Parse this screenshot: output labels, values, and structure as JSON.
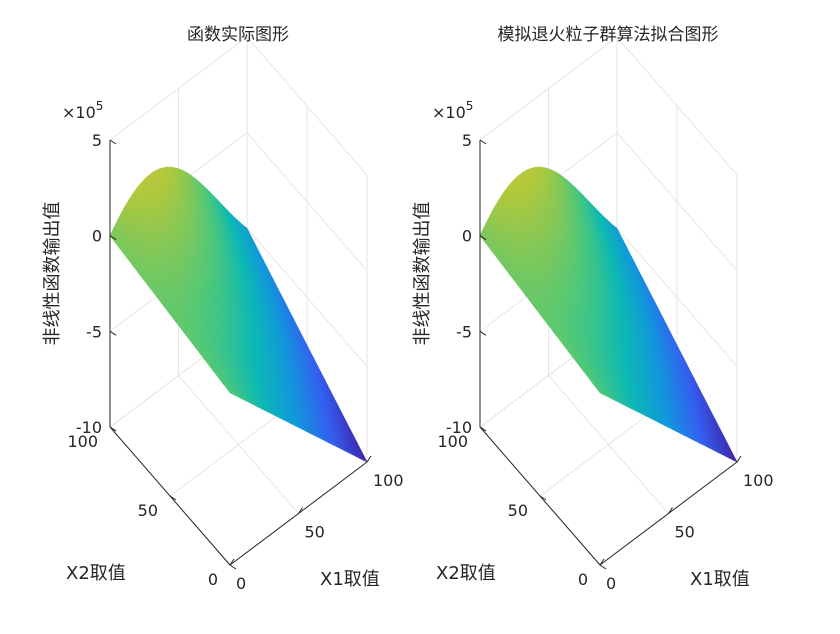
{
  "chart_data": [
    {
      "type": "surface",
      "title": "函数实际图形",
      "xlabel": "X1取值",
      "ylabel": "X2取值",
      "zlabel": "非线性函数输出值",
      "z_multiplier": "×10",
      "z_exponent": "5",
      "xlim": [
        0,
        100
      ],
      "ylim": [
        0,
        100
      ],
      "zlim": [
        -10,
        5
      ],
      "xticks": [
        "0",
        "50",
        "100"
      ],
      "yticks": [
        "0",
        "50",
        "100"
      ],
      "zticks": [
        "5",
        "0",
        "-5",
        "-10"
      ],
      "colormap": "parula",
      "grid": true,
      "surface": {
        "x_samples": [
          0,
          100
        ],
        "y_samples": [
          0,
          100
        ],
        "z_corners_x1e5": {
          "x0_y0": -1.0,
          "x0_y100": 0.0,
          "x100_y0": -10.0,
          "x100_y100": -5.0
        },
        "z_max_x1e5": 4.5
      }
    },
    {
      "type": "surface",
      "title": "模拟退火粒子群算法拟合图形",
      "xlabel": "X1取值",
      "ylabel": "X2取值",
      "zlabel": "非线性函数输出值",
      "z_multiplier": "×10",
      "z_exponent": "5",
      "xlim": [
        0,
        100
      ],
      "ylim": [
        0,
        100
      ],
      "zlim": [
        -10,
        5
      ],
      "xticks": [
        "0",
        "50",
        "100"
      ],
      "yticks": [
        "0",
        "50",
        "100"
      ],
      "zticks": [
        "5",
        "0",
        "-5",
        "-10"
      ],
      "colormap": "parula",
      "grid": true,
      "surface": {
        "x_samples": [
          0,
          100
        ],
        "y_samples": [
          0,
          100
        ],
        "z_corners_x1e5": {
          "x0_y0": -1.0,
          "x0_y100": 0.0,
          "x100_y0": -10.0,
          "x100_y100": -5.0
        },
        "z_max_x1e5": 4.5
      }
    }
  ]
}
